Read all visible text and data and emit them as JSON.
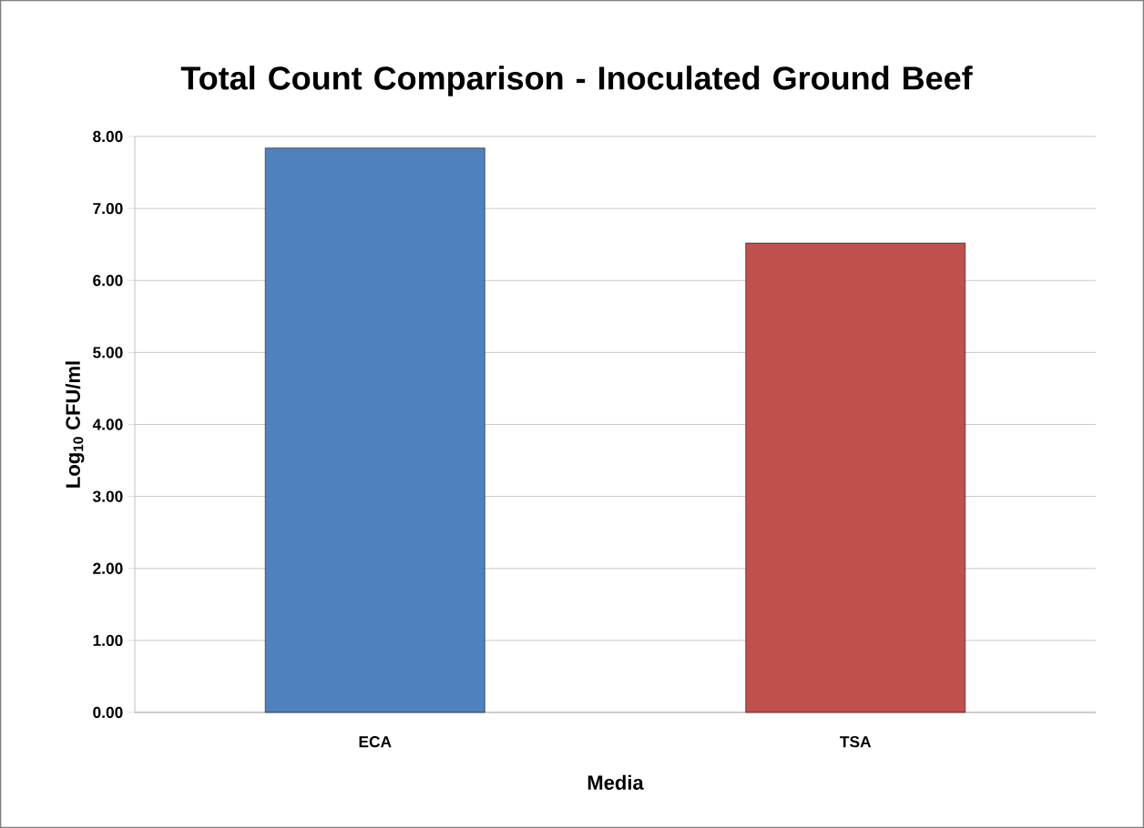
{
  "chart_data": {
    "type": "bar",
    "title": "Total Count Comparison - Inoculated Ground Beef",
    "xlabel": "Media",
    "ylabel": "Log$_{10}$ CFU/ml",
    "categories": [
      "ECA",
      "TSA"
    ],
    "values": [
      7.84,
      6.52
    ],
    "colors": [
      "#4f81bd",
      "#c0504d"
    ],
    "ylim": [
      0,
      8
    ],
    "yticks": [
      {
        "value": 0,
        "label": "0.00"
      },
      {
        "value": 1,
        "label": "1.00"
      },
      {
        "value": 2,
        "label": "2.00"
      },
      {
        "value": 3,
        "label": "3.00"
      },
      {
        "value": 4,
        "label": "4.00"
      },
      {
        "value": 5,
        "label": "5.00"
      },
      {
        "value": 6,
        "label": "6.00"
      },
      {
        "value": 7,
        "label": "7.00"
      },
      {
        "value": 8,
        "label": "8.00"
      }
    ],
    "grid": "y"
  }
}
